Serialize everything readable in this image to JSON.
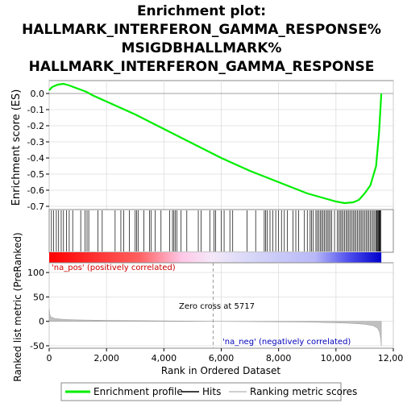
{
  "chart_data": {
    "type": "line",
    "title_lines": [
      "Enrichment plot:",
      "HALLMARK_INTERFERON_GAMMA_RESPONSE%",
      "MSIGDBHALLMARK%",
      "HALLMARK_INTERFERON_GAMMA_RESPONSE"
    ],
    "es_panel": {
      "ylabel": "Enrichment score (ES)",
      "ylim": [
        -0.72,
        0.08
      ],
      "yticks": [
        0.0,
        -0.1,
        -0.2,
        -0.3,
        -0.4,
        -0.5,
        -0.6,
        -0.7
      ],
      "ytick_labels": [
        "0.0",
        "-0.1",
        "-0.2",
        "-0.3",
        "-0.4",
        "-0.5",
        "-0.6",
        "-0.7"
      ],
      "series": [
        {
          "name": "Enrichment profile",
          "color": "#00ee00",
          "x": [
            0,
            100,
            300,
            500,
            700,
            1000,
            1300,
            1500,
            2000,
            3000,
            4000,
            5000,
            6000,
            7000,
            8000,
            9000,
            9500,
            10000,
            10300,
            10600,
            10800,
            11000,
            11200,
            11400,
            11500,
            11580
          ],
          "y": [
            0.02,
            0.04,
            0.055,
            0.06,
            0.05,
            0.03,
            0.01,
            -0.01,
            -0.05,
            -0.13,
            -0.22,
            -0.31,
            -0.4,
            -0.48,
            -0.55,
            -0.62,
            -0.645,
            -0.67,
            -0.68,
            -0.675,
            -0.66,
            -0.62,
            -0.57,
            -0.45,
            -0.25,
            0.0
          ]
        }
      ]
    },
    "hits": [
      80,
      150,
      250,
      330,
      420,
      500,
      600,
      700,
      820,
      1100,
      1250,
      1320,
      1380,
      1700,
      1850,
      2300,
      2500,
      2600,
      2800,
      3000,
      3050,
      3100,
      3300,
      3500,
      3550,
      3700,
      3900,
      4200,
      4300,
      4350,
      4400,
      4450,
      4600,
      4800,
      5200,
      5300,
      5600,
      5750,
      5800,
      6000,
      6100,
      6300,
      6400,
      6900,
      7200,
      7500,
      7550,
      7600,
      7700,
      7800,
      7900,
      8000,
      8100,
      8200,
      8300,
      8500,
      8600,
      8700,
      8900,
      9000,
      9100,
      9150,
      9200,
      9300,
      9350,
      9400,
      9450,
      9500,
      9550,
      9600,
      9650,
      9700,
      9750,
      9800,
      9850,
      9950,
      10050,
      10100,
      10150,
      10200,
      10250,
      10300,
      10350,
      10400,
      10450,
      10500,
      10550,
      10600,
      10650,
      10700,
      10750,
      10800,
      10850,
      10900,
      10950,
      11000,
      11050,
      11100,
      11150,
      11200,
      11250,
      11300,
      11350,
      11400,
      11420,
      11450,
      11480,
      11500,
      11520,
      11540,
      11560
    ],
    "ranked_panel": {
      "ylabel": "Ranked list metric (PreRanked)",
      "ylim": [
        -55,
        120
      ],
      "yticks": [
        100,
        50,
        0,
        -50
      ],
      "ytick_labels": [
        "100",
        "50",
        "0",
        "-50"
      ],
      "x": [
        0,
        20,
        50,
        100,
        200,
        500,
        1000,
        2000,
        3000,
        4000,
        5000,
        5717,
        7000,
        8000,
        9000,
        10000,
        10500,
        11000,
        11300,
        11450,
        11520,
        11560,
        11580
      ],
      "y": [
        25,
        15,
        10,
        8,
        6,
        4,
        3,
        2,
        1.5,
        1,
        0.5,
        0,
        -0.5,
        -1,
        -1.5,
        -3,
        -4,
        -6,
        -9,
        -14,
        -22,
        -35,
        -50
      ]
    },
    "xlabel": "Rank in Ordered Dataset",
    "xlim": [
      0,
      12000
    ],
    "xticks": [
      0,
      2000,
      4000,
      6000,
      8000,
      10000,
      12000
    ],
    "xtick_labels": [
      "0",
      "2,000",
      "4,000",
      "6,000",
      "8,000",
      "10,000",
      "12,000"
    ],
    "n_genes": 11580,
    "zero_cross": 5717,
    "annotations": {
      "pos": "'na_pos' (positively correlated)",
      "neg": "'na_neg' (negatively correlated)",
      "zero": "Zero cross at 5717"
    },
    "legend": {
      "placement": "bottom",
      "items": [
        {
          "label": "Enrichment profile",
          "color": "#00ee00"
        },
        {
          "label": "Hits",
          "color": "#000000"
        },
        {
          "label": "Ranking metric scores",
          "color": "#c0c0c0"
        }
      ]
    },
    "colors": {
      "profile": "#00ee00",
      "pos_strong": "#ff0000",
      "mid": "#ffffff",
      "neg_strong": "#0000ee",
      "ranked_fill": "#c0c0c0",
      "grid": "#dddddd"
    }
  }
}
